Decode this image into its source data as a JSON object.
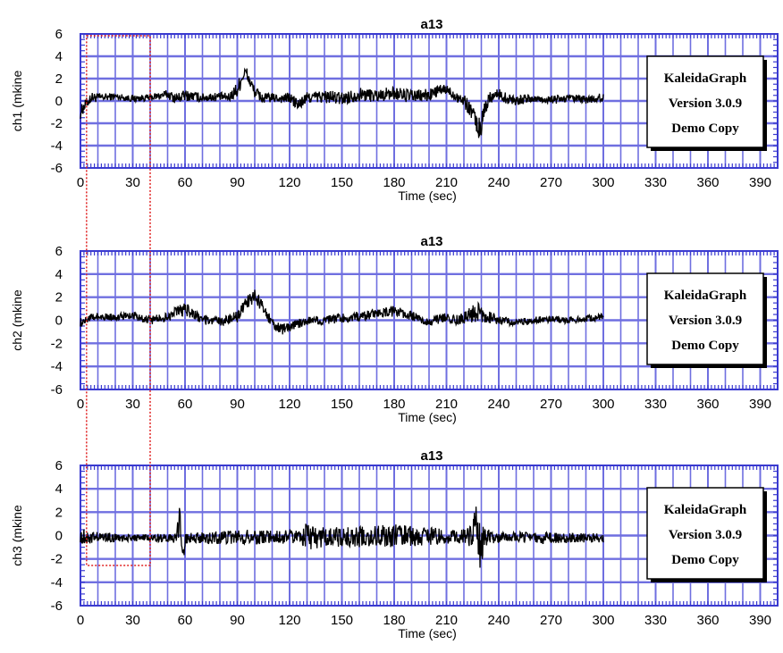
{
  "watermark": {
    "lines": [
      "KaleidaGraph",
      "Version 3.0.9",
      "Demo Copy"
    ]
  },
  "colors": {
    "grid": "#6f6fe0",
    "frame": "#3a3ad0",
    "trace": "#000000",
    "selection": "#e02020"
  },
  "chart_data": [
    {
      "type": "line",
      "title": "a13",
      "xlabel": "Time (sec)",
      "ylabel": "ch1 (mkine",
      "xlim": [
        0,
        400
      ],
      "ylim": [
        -6,
        6
      ],
      "xticks": [
        "0",
        "30",
        "60",
        "90",
        "120",
        "150",
        "180",
        "210",
        "240",
        "270",
        "300",
        "330",
        "360",
        "390"
      ],
      "yticks": [
        "6",
        "4",
        "2",
        "0",
        "-2",
        "-4",
        "-6"
      ],
      "grid": true,
      "series": [
        {
          "x": [
            0,
            3,
            6,
            10,
            20,
            30,
            40,
            50,
            55,
            60,
            70,
            80,
            85,
            90,
            93,
            95,
            97,
            100,
            105,
            110,
            115,
            120,
            125,
            130,
            140,
            150,
            160,
            170,
            180,
            190,
            200,
            205,
            210,
            215,
            220,
            225,
            228,
            230,
            232,
            235,
            240,
            245,
            250,
            260,
            270,
            280,
            290,
            300
          ],
          "y": [
            -1.0,
            -0.3,
            0.3,
            0.3,
            0.4,
            0.2,
            0.3,
            0.6,
            0.2,
            0.5,
            0.3,
            0.4,
            0.3,
            1.0,
            2.2,
            2.6,
            1.8,
            0.8,
            0.2,
            0.3,
            0.2,
            0.3,
            -0.4,
            0.3,
            0.4,
            0.2,
            0.6,
            0.5,
            0.7,
            0.4,
            0.5,
            0.9,
            1.0,
            0.5,
            0.0,
            -1.0,
            -2.5,
            -2.2,
            -0.6,
            0.4,
            0.6,
            0.2,
            0.1,
            0.2,
            0.1,
            0.2,
            0.1,
            0.3
          ],
          "band": [
            0.6,
            0.5,
            0.5,
            0.4,
            0.3,
            0.3,
            0.3,
            0.4,
            0.5,
            0.5,
            0.4,
            0.4,
            0.4,
            0.8,
            0.6,
            0.6,
            0.6,
            0.5,
            0.5,
            0.4,
            0.4,
            0.5,
            0.6,
            0.5,
            0.6,
            0.6,
            0.6,
            0.6,
            0.6,
            0.6,
            0.6,
            0.5,
            0.5,
            0.5,
            0.6,
            0.7,
            1.0,
            1.0,
            0.7,
            0.6,
            0.5,
            0.5,
            0.5,
            0.4,
            0.4,
            0.4,
            0.4,
            0.4
          ]
        }
      ]
    },
    {
      "type": "line",
      "title": "a13",
      "xlabel": "Time (sec)",
      "ylabel": "ch2 (mkine",
      "xlim": [
        0,
        400
      ],
      "ylim": [
        -6,
        6
      ],
      "xticks": [
        "0",
        "30",
        "60",
        "90",
        "120",
        "150",
        "180",
        "210",
        "240",
        "270",
        "300",
        "330",
        "360",
        "390"
      ],
      "yticks": [
        "6",
        "4",
        "2",
        "0",
        "-2",
        "-4",
        "-6"
      ],
      "grid": true,
      "series": [
        {
          "x": [
            0,
            5,
            10,
            20,
            30,
            40,
            50,
            55,
            60,
            65,
            70,
            80,
            90,
            95,
            100,
            105,
            110,
            115,
            120,
            125,
            130,
            140,
            150,
            160,
            170,
            180,
            190,
            200,
            210,
            215,
            220,
            225,
            228,
            232,
            240,
            250,
            260,
            270,
            280,
            290,
            300
          ],
          "y": [
            -0.2,
            0.2,
            0.3,
            0.3,
            0.4,
            0.0,
            0.3,
            0.7,
            1.0,
            0.5,
            0.0,
            -0.1,
            0.3,
            1.5,
            2.1,
            1.0,
            -0.3,
            -0.8,
            -0.6,
            -0.3,
            0.0,
            0.0,
            0.2,
            0.3,
            0.6,
            0.8,
            0.4,
            -0.2,
            0.3,
            0.0,
            0.2,
            0.6,
            0.9,
            0.4,
            0.0,
            -0.2,
            0.0,
            0.1,
            0.0,
            0.1,
            0.3
          ],
          "band": [
            0.4,
            0.3,
            0.3,
            0.3,
            0.3,
            0.4,
            0.4,
            0.5,
            0.6,
            0.5,
            0.4,
            0.4,
            0.5,
            0.6,
            0.6,
            0.5,
            0.5,
            0.5,
            0.4,
            0.4,
            0.4,
            0.4,
            0.4,
            0.4,
            0.4,
            0.5,
            0.4,
            0.4,
            0.4,
            0.4,
            0.5,
            0.8,
            1.0,
            0.6,
            0.4,
            0.3,
            0.3,
            0.3,
            0.3,
            0.3,
            0.3
          ]
        }
      ]
    },
    {
      "type": "line",
      "title": "a13",
      "xlabel": "Time (sec)",
      "ylabel": "ch3 (mkine",
      "xlim": [
        0,
        400
      ],
      "ylim": [
        -6,
        6
      ],
      "xticks": [
        "0",
        "30",
        "60",
        "90",
        "120",
        "150",
        "180",
        "210",
        "240",
        "270",
        "300",
        "330",
        "360",
        "390"
      ],
      "yticks": [
        "6",
        "4",
        "2",
        "0",
        "-2",
        "-4",
        "-6"
      ],
      "grid": true,
      "series": [
        {
          "x": [
            0,
            5,
            10,
            20,
            30,
            40,
            50,
            55,
            57,
            58,
            59,
            60,
            62,
            70,
            80,
            90,
            100,
            110,
            120,
            128,
            130,
            132,
            140,
            150,
            160,
            170,
            180,
            190,
            200,
            210,
            220,
            225,
            227,
            229,
            232,
            240,
            250,
            260,
            270,
            280,
            290,
            300
          ],
          "y": [
            0.0,
            -0.2,
            -0.1,
            -0.2,
            -0.2,
            -0.2,
            -0.2,
            -0.3,
            1.0,
            0.0,
            -1.5,
            -0.4,
            -0.2,
            -0.2,
            -0.2,
            -0.1,
            -0.1,
            -0.1,
            -0.1,
            -0.1,
            0.5,
            -0.4,
            -0.1,
            -0.1,
            -0.1,
            0.0,
            0.0,
            -0.1,
            0.0,
            -0.1,
            -0.1,
            -0.1,
            0.8,
            -0.9,
            -0.2,
            -0.2,
            -0.1,
            -0.2,
            -0.2,
            -0.2,
            -0.2,
            -0.2
          ],
          "band": [
            0.8,
            0.5,
            0.4,
            0.4,
            0.3,
            0.3,
            0.4,
            0.4,
            1.9,
            2.0,
            1.8,
            0.5,
            0.4,
            0.5,
            0.6,
            0.6,
            0.7,
            0.6,
            0.6,
            0.8,
            1.5,
            1.2,
            0.8,
            0.9,
            0.9,
            1.0,
            1.0,
            0.9,
            0.8,
            0.6,
            0.6,
            1.0,
            2.8,
            2.2,
            0.8,
            0.5,
            0.4,
            0.5,
            0.5,
            0.4,
            0.4,
            0.4
          ]
        }
      ]
    }
  ]
}
